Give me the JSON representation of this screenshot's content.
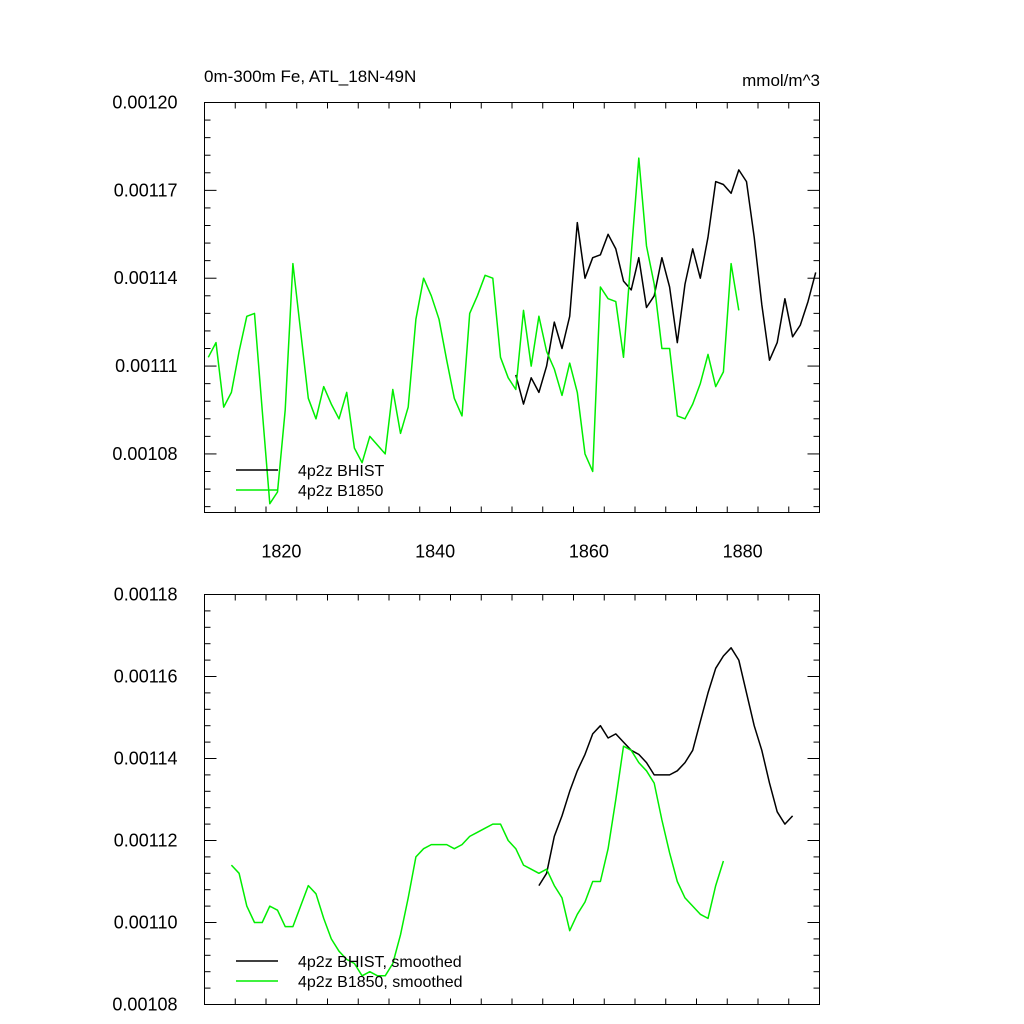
{
  "chart_data": [
    {
      "type": "line",
      "title": "0m-300m Fe, ATL_18N-49N",
      "units_label": "mmol/m^3",
      "xlabel": "",
      "ylabel": "",
      "xlim": [
        1810,
        1890
      ],
      "ylim": [
        0.00106,
        0.0012
      ],
      "xticks": [
        1820,
        1840,
        1860,
        1880
      ],
      "xtick_labels": [
        "1820",
        "1840",
        "1860",
        "1880"
      ],
      "yticks": [
        0.00108,
        0.00111,
        0.00114,
        0.00117,
        0.0012
      ],
      "ytick_labels": [
        "0.00108",
        "0.00111",
        "0.00114",
        "0.00117",
        "0.00120"
      ],
      "grid": false,
      "legend_position": "bottom-left",
      "series": [
        {
          "name": "4p2z BHIST",
          "color": "#000000",
          "points": [
            [
              1850.5,
              0.001107
            ],
            [
              1851.5,
              0.001097
            ],
            [
              1852.5,
              0.001106
            ],
            [
              1853.5,
              0.001101
            ],
            [
              1854.5,
              0.00111
            ],
            [
              1855.5,
              0.001125
            ],
            [
              1856.5,
              0.001116
            ],
            [
              1857.5,
              0.001127
            ],
            [
              1858.5,
              0.001159
            ],
            [
              1859.5,
              0.00114
            ],
            [
              1860.5,
              0.001147
            ],
            [
              1861.5,
              0.001148
            ],
            [
              1862.5,
              0.001155
            ],
            [
              1863.5,
              0.00115
            ],
            [
              1864.5,
              0.001139
            ],
            [
              1865.5,
              0.001136
            ],
            [
              1866.5,
              0.001147
            ],
            [
              1867.5,
              0.00113
            ],
            [
              1868.5,
              0.001134
            ],
            [
              1869.5,
              0.001147
            ],
            [
              1870.5,
              0.001137
            ],
            [
              1871.5,
              0.001118
            ],
            [
              1872.5,
              0.001138
            ],
            [
              1873.5,
              0.00115
            ],
            [
              1874.5,
              0.00114
            ],
            [
              1875.5,
              0.001154
            ],
            [
              1876.5,
              0.001173
            ],
            [
              1877.5,
              0.001172
            ],
            [
              1878.5,
              0.001169
            ],
            [
              1879.5,
              0.001177
            ],
            [
              1880.5,
              0.001173
            ],
            [
              1881.5,
              0.001154
            ],
            [
              1882.5,
              0.001131
            ],
            [
              1883.5,
              0.001112
            ],
            [
              1884.5,
              0.001118
            ],
            [
              1885.5,
              0.001133
            ],
            [
              1886.5,
              0.00112
            ],
            [
              1887.5,
              0.001124
            ],
            [
              1888.5,
              0.001132
            ],
            [
              1889.5,
              0.001142
            ]
          ]
        },
        {
          "name": "4p2z B1850",
          "color": "#00ee00",
          "points": [
            [
              1810.5,
              0.001113
            ],
            [
              1811.5,
              0.001118
            ],
            [
              1812.5,
              0.001096
            ],
            [
              1813.5,
              0.001101
            ],
            [
              1814.5,
              0.001115
            ],
            [
              1815.5,
              0.001127
            ],
            [
              1816.5,
              0.001128
            ],
            [
              1817.5,
              0.001095
            ],
            [
              1818.5,
              0.001063
            ],
            [
              1819.5,
              0.001067
            ],
            [
              1820.5,
              0.001095
            ],
            [
              1821.5,
              0.001145
            ],
            [
              1822.5,
              0.001122
            ],
            [
              1823.5,
              0.001099
            ],
            [
              1824.5,
              0.001092
            ],
            [
              1825.5,
              0.001103
            ],
            [
              1826.5,
              0.001097
            ],
            [
              1827.5,
              0.001092
            ],
            [
              1828.5,
              0.001101
            ],
            [
              1829.5,
              0.001082
            ],
            [
              1830.5,
              0.001077
            ],
            [
              1831.5,
              0.001086
            ],
            [
              1832.5,
              0.001083
            ],
            [
              1833.5,
              0.00108
            ],
            [
              1834.5,
              0.001102
            ],
            [
              1835.5,
              0.001087
            ],
            [
              1836.5,
              0.001096
            ],
            [
              1837.5,
              0.001126
            ],
            [
              1838.5,
              0.00114
            ],
            [
              1839.5,
              0.001134
            ],
            [
              1840.5,
              0.001126
            ],
            [
              1841.5,
              0.001112
            ],
            [
              1842.5,
              0.001099
            ],
            [
              1843.5,
              0.001093
            ],
            [
              1844.5,
              0.001128
            ],
            [
              1845.5,
              0.001134
            ],
            [
              1846.5,
              0.001141
            ],
            [
              1847.5,
              0.00114
            ],
            [
              1848.5,
              0.001113
            ],
            [
              1849.5,
              0.001106
            ],
            [
              1850.5,
              0.001102
            ],
            [
              1851.5,
              0.001129
            ],
            [
              1852.5,
              0.00111
            ],
            [
              1853.5,
              0.001127
            ],
            [
              1854.5,
              0.001115
            ],
            [
              1855.5,
              0.001109
            ],
            [
              1856.5,
              0.0011
            ],
            [
              1857.5,
              0.001111
            ],
            [
              1858.5,
              0.001101
            ],
            [
              1859.5,
              0.00108
            ],
            [
              1860.5,
              0.001074
            ],
            [
              1861.5,
              0.001137
            ],
            [
              1862.5,
              0.001133
            ],
            [
              1863.5,
              0.001132
            ],
            [
              1864.5,
              0.001113
            ],
            [
              1865.5,
              0.001148
            ],
            [
              1866.5,
              0.001181
            ],
            [
              1867.5,
              0.001151
            ],
            [
              1868.5,
              0.001138
            ],
            [
              1869.5,
              0.001116
            ],
            [
              1870.5,
              0.001116
            ],
            [
              1871.5,
              0.001093
            ],
            [
              1872.5,
              0.001092
            ],
            [
              1873.5,
              0.001097
            ],
            [
              1874.5,
              0.001104
            ],
            [
              1875.5,
              0.001114
            ],
            [
              1876.5,
              0.001103
            ],
            [
              1877.5,
              0.001108
            ],
            [
              1878.5,
              0.001145
            ],
            [
              1879.5,
              0.001129
            ]
          ]
        }
      ]
    },
    {
      "type": "line",
      "title": "",
      "xlabel": "",
      "ylabel": "",
      "xlim": [
        1810,
        1890
      ],
      "ylim": [
        0.00108,
        0.00118
      ],
      "xticks": [
        1820,
        1840,
        1860,
        1880
      ],
      "xtick_labels": [],
      "yticks": [
        0.00108,
        0.0011,
        0.00112,
        0.00114,
        0.00116,
        0.00118
      ],
      "ytick_labels": [
        "0.00108",
        "0.00110",
        "0.00112",
        "0.00114",
        "0.00116",
        "0.00118"
      ],
      "grid": false,
      "legend_position": "bottom-left",
      "series": [
        {
          "name": "4p2z BHIST, smoothed",
          "color": "#000000",
          "points": [
            [
              1853.5,
              0.001109
            ],
            [
              1854.5,
              0.001112
            ],
            [
              1855.5,
              0.001121
            ],
            [
              1856.5,
              0.001126
            ],
            [
              1857.5,
              0.001132
            ],
            [
              1858.5,
              0.001137
            ],
            [
              1859.5,
              0.001141
            ],
            [
              1860.5,
              0.001146
            ],
            [
              1861.5,
              0.001148
            ],
            [
              1862.5,
              0.001145
            ],
            [
              1863.5,
              0.001146
            ],
            [
              1864.5,
              0.001144
            ],
            [
              1865.5,
              0.001142
            ],
            [
              1866.5,
              0.001141
            ],
            [
              1867.5,
              0.001139
            ],
            [
              1868.5,
              0.001136
            ],
            [
              1869.5,
              0.001136
            ],
            [
              1870.5,
              0.001136
            ],
            [
              1871.5,
              0.001137
            ],
            [
              1872.5,
              0.001139
            ],
            [
              1873.5,
              0.001142
            ],
            [
              1874.5,
              0.001149
            ],
            [
              1875.5,
              0.001156
            ],
            [
              1876.5,
              0.001162
            ],
            [
              1877.5,
              0.001165
            ],
            [
              1878.5,
              0.001167
            ],
            [
              1879.5,
              0.001164
            ],
            [
              1880.5,
              0.001156
            ],
            [
              1881.5,
              0.001148
            ],
            [
              1882.5,
              0.001142
            ],
            [
              1883.5,
              0.001134
            ],
            [
              1884.5,
              0.001127
            ],
            [
              1885.5,
              0.001124
            ],
            [
              1886.5,
              0.001126
            ]
          ]
        },
        {
          "name": "4p2z B1850, smoothed",
          "color": "#00ee00",
          "points": [
            [
              1813.5,
              0.001114
            ],
            [
              1814.5,
              0.001112
            ],
            [
              1815.5,
              0.001104
            ],
            [
              1816.5,
              0.0011
            ],
            [
              1817.5,
              0.0011
            ],
            [
              1818.5,
              0.001104
            ],
            [
              1819.5,
              0.001103
            ],
            [
              1820.5,
              0.001099
            ],
            [
              1821.5,
              0.001099
            ],
            [
              1822.5,
              0.001104
            ],
            [
              1823.5,
              0.001109
            ],
            [
              1824.5,
              0.001107
            ],
            [
              1825.5,
              0.001101
            ],
            [
              1826.5,
              0.001096
            ],
            [
              1827.5,
              0.001093
            ],
            [
              1828.5,
              0.001091
            ],
            [
              1829.5,
              0.00109
            ],
            [
              1830.5,
              0.001087
            ],
            [
              1831.5,
              0.001088
            ],
            [
              1832.5,
              0.001087
            ],
            [
              1833.5,
              0.001087
            ],
            [
              1834.5,
              0.00109
            ],
            [
              1835.5,
              0.001097
            ],
            [
              1836.5,
              0.001106
            ],
            [
              1837.5,
              0.001116
            ],
            [
              1838.5,
              0.001118
            ],
            [
              1839.5,
              0.001119
            ],
            [
              1840.5,
              0.001119
            ],
            [
              1841.5,
              0.001119
            ],
            [
              1842.5,
              0.001118
            ],
            [
              1843.5,
              0.001119
            ],
            [
              1844.5,
              0.001121
            ],
            [
              1845.5,
              0.001122
            ],
            [
              1846.5,
              0.001123
            ],
            [
              1847.5,
              0.001124
            ],
            [
              1848.5,
              0.001124
            ],
            [
              1849.5,
              0.00112
            ],
            [
              1850.5,
              0.001118
            ],
            [
              1851.5,
              0.001114
            ],
            [
              1852.5,
              0.001113
            ],
            [
              1853.5,
              0.001112
            ],
            [
              1854.5,
              0.001113
            ],
            [
              1855.5,
              0.001109
            ],
            [
              1856.5,
              0.001106
            ],
            [
              1857.5,
              0.001098
            ],
            [
              1858.5,
              0.001102
            ],
            [
              1859.5,
              0.001105
            ],
            [
              1860.5,
              0.00111
            ],
            [
              1861.5,
              0.00111
            ],
            [
              1862.5,
              0.001118
            ],
            [
              1863.5,
              0.00113
            ],
            [
              1864.5,
              0.001143
            ],
            [
              1865.5,
              0.001142
            ],
            [
              1866.5,
              0.001139
            ],
            [
              1867.5,
              0.001137
            ],
            [
              1868.5,
              0.001134
            ],
            [
              1869.5,
              0.001125
            ],
            [
              1870.5,
              0.001117
            ],
            [
              1871.5,
              0.00111
            ],
            [
              1872.5,
              0.001106
            ],
            [
              1873.5,
              0.001104
            ],
            [
              1874.5,
              0.001102
            ],
            [
              1875.5,
              0.001101
            ],
            [
              1876.5,
              0.001109
            ],
            [
              1877.5,
              0.001115
            ]
          ]
        }
      ]
    }
  ]
}
